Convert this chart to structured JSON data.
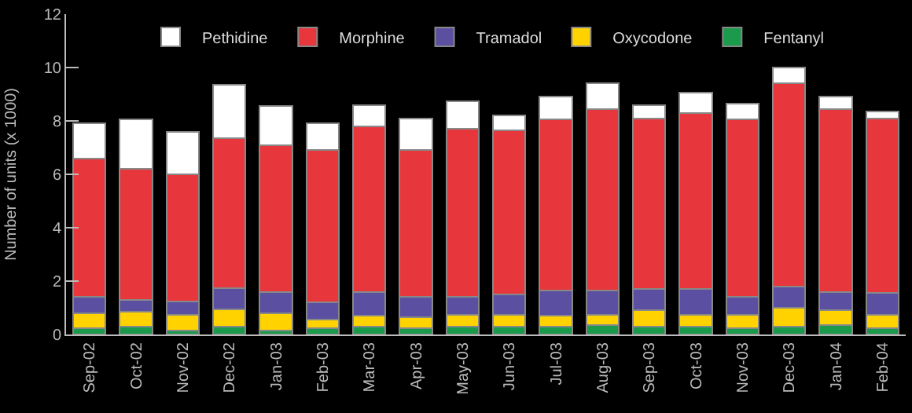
{
  "chart_data": {
    "type": "bar",
    "stacked": true,
    "ylabel": "Number of units (x 1000)",
    "categories": [
      "Sep-02",
      "Oct-02",
      "Nov-02",
      "Dec-02",
      "Jan-03",
      "Feb-03",
      "Mar-03",
      "Apr-03",
      "May-03",
      "Jun-03",
      "Jul-03",
      "Aug-03",
      "Sep-03",
      "Oct-03",
      "Nov-03",
      "Dec-03",
      "Jan-04",
      "Feb-04"
    ],
    "series": [
      {
        "name": "Fentanyl",
        "color": "#1a9a4a",
        "values": [
          0.25,
          0.3,
          0.15,
          0.3,
          0.15,
          0.25,
          0.3,
          0.25,
          0.3,
          0.3,
          0.3,
          0.35,
          0.3,
          0.3,
          0.25,
          0.3,
          0.35,
          0.25
        ]
      },
      {
        "name": "Oxycodone",
        "color": "#ffd200",
        "values": [
          0.55,
          0.55,
          0.6,
          0.65,
          0.65,
          0.3,
          0.4,
          0.4,
          0.45,
          0.45,
          0.4,
          0.4,
          0.6,
          0.45,
          0.5,
          0.7,
          0.55,
          0.5
        ]
      },
      {
        "name": "Tramadol",
        "color": "#5a4fa0",
        "values": [
          0.6,
          0.45,
          0.5,
          0.8,
          0.8,
          0.65,
          0.9,
          0.75,
          0.65,
          0.75,
          0.95,
          0.9,
          0.8,
          0.95,
          0.65,
          0.8,
          0.7,
          0.8
        ]
      },
      {
        "name": "Morphine",
        "color": "#e8373c",
        "values": [
          5.2,
          4.9,
          4.75,
          5.6,
          5.5,
          5.7,
          6.2,
          5.5,
          6.3,
          6.15,
          6.4,
          6.8,
          6.4,
          6.6,
          6.65,
          7.6,
          6.85,
          6.55
        ]
      },
      {
        "name": "Pethidine",
        "color": "#ffffff",
        "values": [
          1.3,
          1.85,
          1.6,
          2.0,
          1.45,
          1.0,
          0.8,
          1.2,
          1.05,
          0.55,
          0.85,
          0.95,
          0.5,
          0.75,
          0.6,
          0.6,
          0.45,
          0.25
        ]
      }
    ],
    "ylim": [
      0,
      12
    ],
    "yticks": [
      0,
      2,
      4,
      6,
      8,
      10,
      12
    ],
    "grid": false,
    "legend": "top"
  }
}
